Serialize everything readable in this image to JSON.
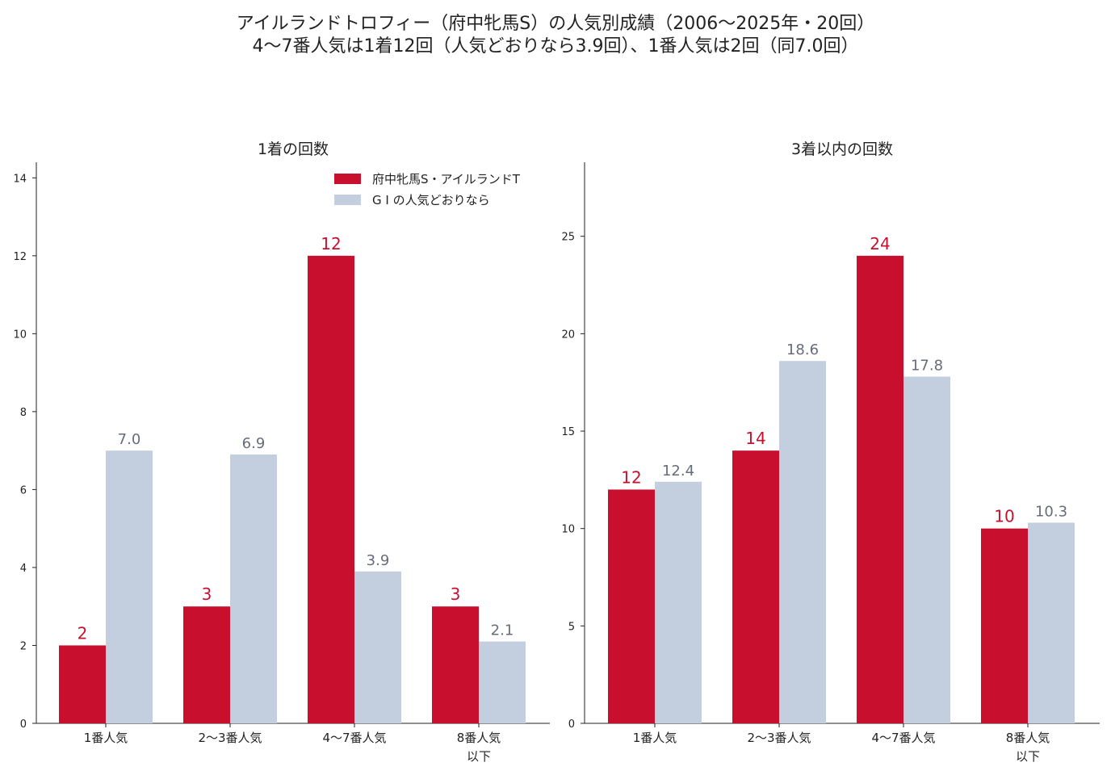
{
  "title_line1": "アイルランドトロフィー（府中牝馬S）の人気別成績（2006〜2025年・20回）",
  "title_line2": "4〜7番人気は1着12回（人気どおりなら3.9回）、1番人気は2回（同7.0回）",
  "colors": {
    "actual": "#c8102e",
    "expected": "#c3cfdf",
    "axis": "#222222",
    "expected_label": "#666c78"
  },
  "legend": [
    {
      "label": "府中牝馬S・アイルランドT",
      "color": "#c8102e"
    },
    {
      "label": "G I の人気どおりなら",
      "color": "#c3cfdf"
    }
  ],
  "chart_data": [
    {
      "type": "bar",
      "title": "1着の回数",
      "categories": [
        [
          "1番人気"
        ],
        [
          "2〜3番人気"
        ],
        [
          "4〜7番人気"
        ],
        [
          "8番人気",
          "以下"
        ]
      ],
      "series": [
        {
          "name": "府中牝馬S・アイルランドT",
          "values": [
            2,
            3,
            12,
            3
          ],
          "labels": [
            "2",
            "3",
            "12",
            "3"
          ]
        },
        {
          "name": "G I の人気どおりなら",
          "values": [
            7.0,
            6.9,
            3.9,
            2.1
          ],
          "labels": [
            "7.0",
            "6.9",
            "3.9",
            "2.1"
          ]
        }
      ],
      "ylim": [
        0,
        14.4
      ],
      "yticks": [
        0,
        2,
        4,
        6,
        8,
        10,
        12,
        14
      ],
      "legend": "top-right",
      "grid": false
    },
    {
      "type": "bar",
      "title": "3着以内の回数",
      "categories": [
        [
          "1番人気"
        ],
        [
          "2〜3番人気"
        ],
        [
          "4〜7番人気"
        ],
        [
          "8番人気",
          "以下"
        ]
      ],
      "series": [
        {
          "name": "府中牝馬S・アイルランドT",
          "values": [
            12,
            14,
            24,
            10
          ],
          "labels": [
            "12",
            "14",
            "24",
            "10"
          ]
        },
        {
          "name": "G I の人気どおりなら",
          "values": [
            12.4,
            18.6,
            17.8,
            10.3
          ],
          "labels": [
            "12.4",
            "18.6",
            "17.8",
            "10.3"
          ]
        }
      ],
      "ylim": [
        0,
        28.8
      ],
      "yticks": [
        0,
        5,
        10,
        15,
        20,
        25
      ],
      "grid": false
    }
  ]
}
